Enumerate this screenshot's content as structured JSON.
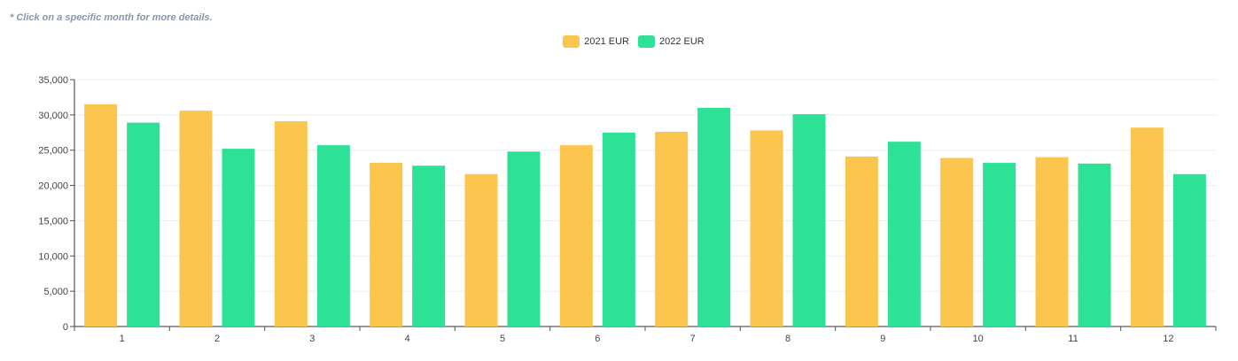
{
  "hint": "* Click on a specific month for more details.",
  "legend": [
    {
      "label": "2021 EUR",
      "color": "#fcc54e"
    },
    {
      "label": "2022 EUR",
      "color": "#2de296"
    }
  ],
  "chart_data": {
    "type": "bar",
    "categories": [
      "1",
      "2",
      "3",
      "4",
      "5",
      "6",
      "7",
      "8",
      "9",
      "10",
      "11",
      "12"
    ],
    "series": [
      {
        "name": "2021 EUR",
        "color": "#fcc54e",
        "values": [
          31500,
          30600,
          29100,
          23200,
          21600,
          25700,
          27600,
          27800,
          24100,
          23900,
          24000,
          28200
        ]
      },
      {
        "name": "2022 EUR",
        "color": "#2de296",
        "values": [
          28900,
          25200,
          25700,
          22800,
          24800,
          27500,
          31000,
          30100,
          26200,
          23200,
          23100,
          21600
        ]
      }
    ],
    "ylim": [
      0,
      35000
    ],
    "yticks": [
      0,
      5000,
      10000,
      15000,
      20000,
      25000,
      30000,
      35000
    ],
    "ytick_labels": [
      "0",
      "5,000",
      "10,000",
      "15,000",
      "20,000",
      "25,000",
      "30,000",
      "35,000"
    ],
    "grid": true,
    "legend_position": "top-center"
  }
}
